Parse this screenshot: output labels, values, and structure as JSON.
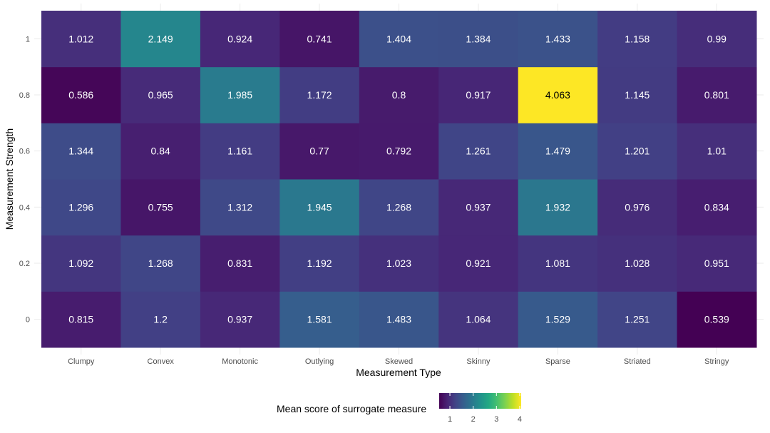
{
  "chart_data": {
    "type": "heatmap",
    "title": "",
    "xlabel": "Measurement Type",
    "ylabel": "Measurement Strength",
    "x_categories": [
      "Clumpy",
      "Convex",
      "Monotonic",
      "Outlying",
      "Skewed",
      "Skinny",
      "Sparse",
      "Striated",
      "Stringy"
    ],
    "y_categories": [
      "0",
      "0.2",
      "0.4",
      "0.6",
      "0.8",
      "1"
    ],
    "values": [
      [
        "0.815",
        "1.2",
        "0.937",
        "1.581",
        "1.483",
        "1.064",
        "1.529",
        "1.251",
        "0.539"
      ],
      [
        "1.092",
        "1.268",
        "0.831",
        "1.192",
        "1.023",
        "0.921",
        "1.081",
        "1.028",
        "0.951"
      ],
      [
        "1.296",
        "0.755",
        "1.312",
        "1.945",
        "1.268",
        "0.937",
        "1.932",
        "0.976",
        "0.834"
      ],
      [
        "1.344",
        "0.84",
        "1.161",
        "0.77",
        "0.792",
        "1.261",
        "1.479",
        "1.201",
        "1.01"
      ],
      [
        "0.586",
        "0.965",
        "1.985",
        "1.172",
        "0.8",
        "0.917",
        "4.063",
        "1.145",
        "0.801"
      ],
      [
        "1.012",
        "2.149",
        "0.924",
        "0.741",
        "1.404",
        "1.384",
        "1.433",
        "1.158",
        "0.99"
      ]
    ],
    "colorscale": "viridis",
    "color_range": [
      0.539,
      4.063
    ],
    "grid": true,
    "legend": {
      "title": "Mean score of surrogate measure",
      "ticks": [
        "1",
        "2",
        "3",
        "4"
      ],
      "placement": "bottom"
    }
  }
}
